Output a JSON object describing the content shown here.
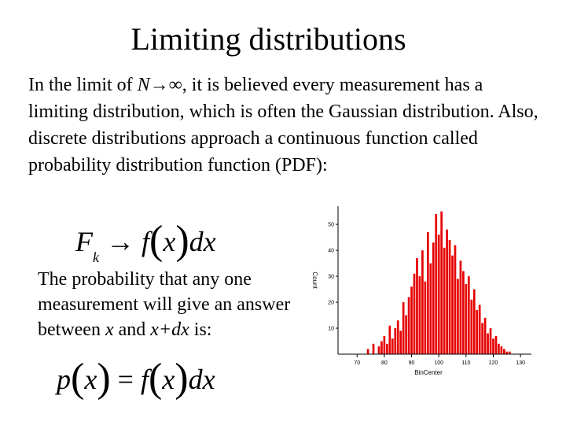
{
  "slide": {
    "title": "Limiting distributions",
    "intro_before": "In the limit of ",
    "intro_N": "N",
    "intro_arrow": "→∞",
    "intro_after": ", it is believed every measurement has a limiting distribution, which is often the Gaussian distribution. Also, discrete distributions approach a continuous function called probability distribution function (PDF):",
    "formula1": {
      "F": "F",
      "k": "k",
      "arrow": "→",
      "f": "f",
      "lparen": "(",
      "x": "x",
      "rparen": ")",
      "dx": "dx"
    },
    "prob_text_1": "The probability that any one measurement will give an answer between ",
    "prob_x": "x",
    "prob_and": " and ",
    "prob_xdx": "x+dx",
    "prob_end": " is:",
    "formula2": {
      "p": "p",
      "lparen": "(",
      "x": "x",
      "rparen": ")",
      "eq": " = ",
      "f": "f",
      "lparen2": "(",
      "x2": "x",
      "rparen2": ")",
      "dx": "dx"
    }
  },
  "colors": {
    "bar": "#e60000",
    "axis": "#000000",
    "text": "#000000"
  },
  "chart_data": {
    "type": "bar",
    "title": "",
    "xlabel": "BinCenter",
    "ylabel": "Count",
    "xlim": [
      63,
      134
    ],
    "ylim": [
      0,
      57
    ],
    "xticks": [
      70,
      80,
      90,
      100,
      110,
      120,
      130
    ],
    "yticks": [
      10,
      20,
      30,
      40,
      50
    ],
    "grid": false,
    "bin_width": 1,
    "x": [
      74,
      76,
      78,
      79,
      80,
      81,
      82,
      83,
      84,
      85,
      86,
      87,
      88,
      89,
      90,
      91,
      92,
      93,
      94,
      95,
      96,
      97,
      98,
      99,
      100,
      101,
      102,
      103,
      104,
      105,
      106,
      107,
      108,
      109,
      110,
      111,
      112,
      113,
      114,
      115,
      116,
      117,
      118,
      119,
      120,
      121,
      122,
      123,
      124,
      125,
      126
    ],
    "values": [
      2,
      4,
      3,
      5,
      7,
      4,
      11,
      6,
      10,
      13,
      9,
      20,
      15,
      22,
      26,
      31,
      37,
      30,
      40,
      28,
      47,
      35,
      43,
      54,
      46,
      55,
      41,
      48,
      44,
      38,
      42,
      29,
      36,
      32,
      27,
      30,
      21,
      25,
      17,
      19,
      12,
      14,
      8,
      10,
      6,
      7,
      4,
      3,
      2,
      1,
      1
    ]
  }
}
